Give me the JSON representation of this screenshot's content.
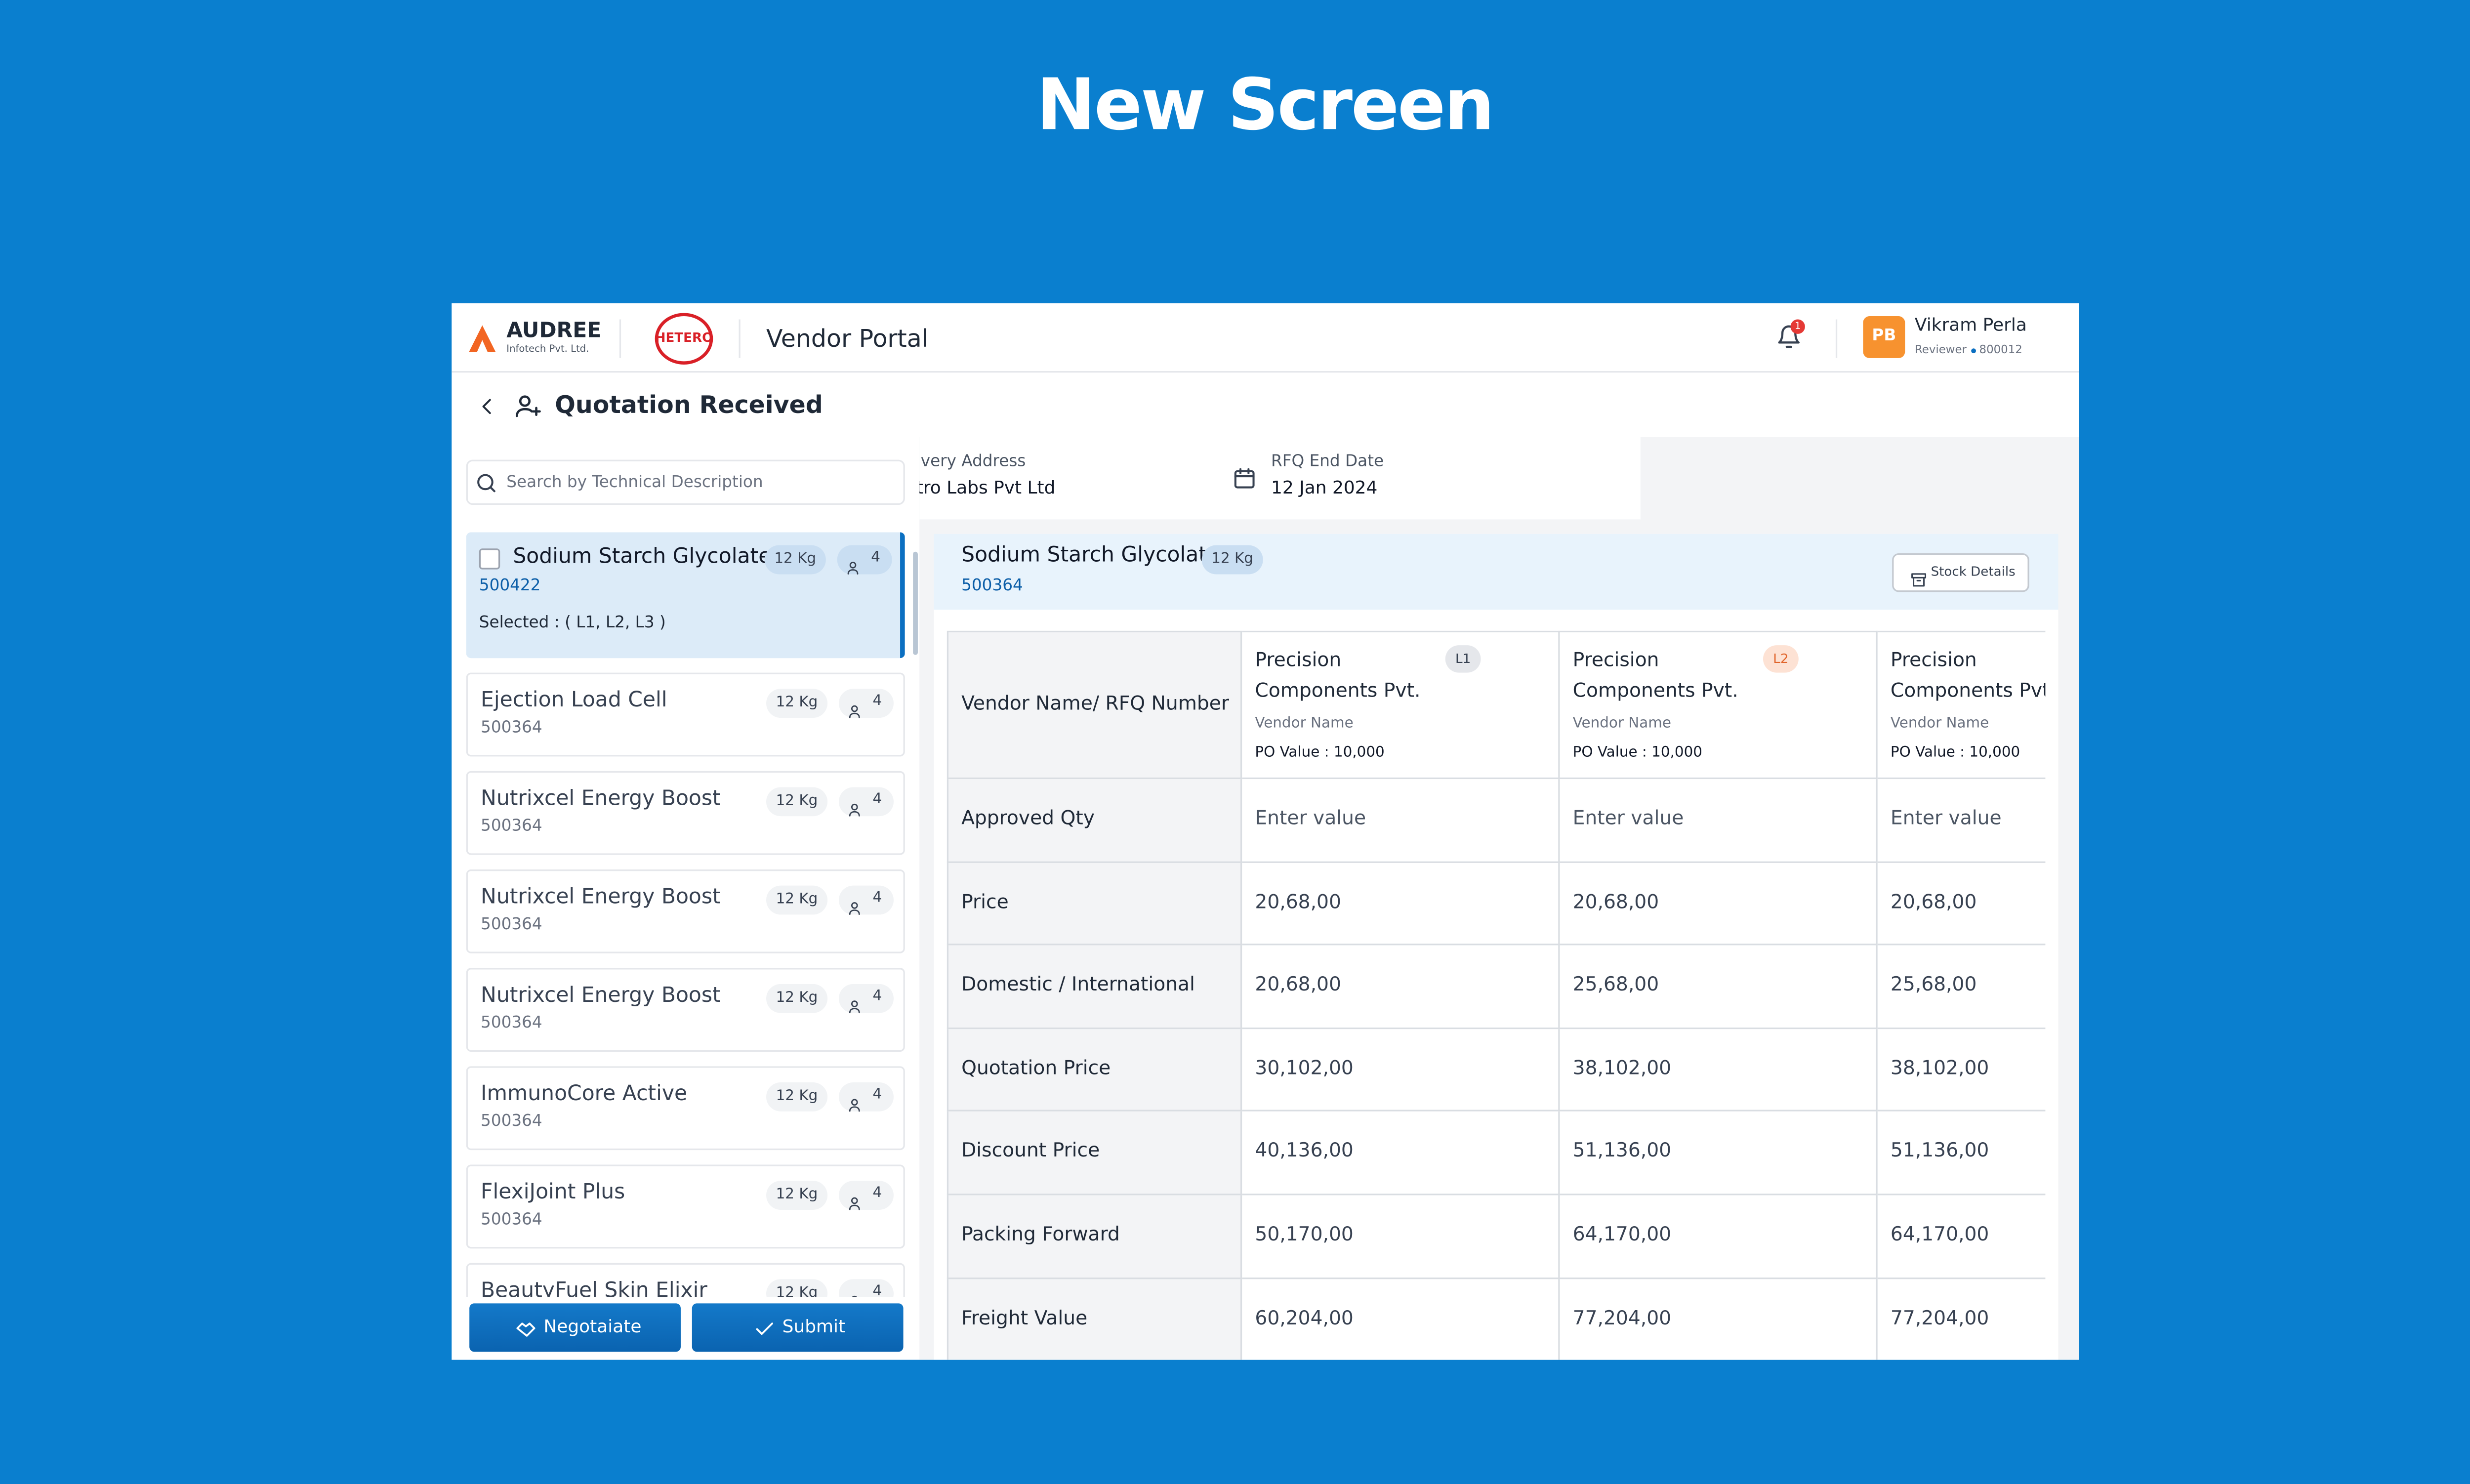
{
  "screen_title": "New Screen",
  "header": {
    "brand": "AUDREE",
    "brand_sub": "Infotech Pvt. Ltd.",
    "partner": "HETERO",
    "portal": "Vendor Portal",
    "notifications": "1",
    "user": {
      "initials": "PB",
      "name": "Vikram Perla",
      "role": "Reviewer",
      "id": "800012"
    }
  },
  "page": {
    "title": "Quotation Received",
    "search_placeholder": "Search by Technical Description"
  },
  "items": [
    {
      "name": "Sodium Starch Glycolate",
      "qty": "12 Kg",
      "count": "4",
      "code": "500422",
      "selected": "Selected : ( L1, L2, L3 )"
    },
    {
      "name": "Ejection Load Cell",
      "qty": "12 Kg",
      "count": "4",
      "code": "500364"
    },
    {
      "name": "Nutrixcel Energy Boost",
      "qty": "12 Kg",
      "count": "4",
      "code": "500364"
    },
    {
      "name": "Nutrixcel Energy Boost",
      "qty": "12 Kg",
      "count": "4",
      "code": "500364"
    },
    {
      "name": "Nutrixcel Energy Boost",
      "qty": "12 Kg",
      "count": "4",
      "code": "500364"
    },
    {
      "name": "ImmunoCore Active",
      "qty": "12 Kg",
      "count": "4",
      "code": "500364"
    },
    {
      "name": "FlexiJoint Plus",
      "qty": "12 Kg",
      "count": "4",
      "code": "500364"
    },
    {
      "name": "BeautyFuel Skin Elixir",
      "qty": "12 Kg",
      "count": "4"
    }
  ],
  "info": [
    {
      "label": "ivery Address",
      "value": "tro Labs Pvt Ltd"
    },
    {
      "label": "RFQ End Date",
      "value": "12 Jan 2024"
    }
  ],
  "product": {
    "name": "Sodium Starch Glycolate",
    "qty": "12 Kg",
    "code": "500364",
    "action": "Stock Details"
  },
  "table": {
    "header": "Vendor Name/ RFQ Number",
    "vendors": [
      {
        "name": "Precision Components Pvt.",
        "sub": "Vendor Name",
        "po": "PO Value : 10,000",
        "rank": "L1"
      },
      {
        "name": "Precision Components Pvt.",
        "sub": "Vendor Name",
        "po": "PO Value : 10,000",
        "rank": "L2"
      },
      {
        "name": "Precision Components Pvt.",
        "sub": "Vendor Name",
        "po": "PO Value : 10,000"
      }
    ],
    "rows": [
      {
        "label": "Approved Qty",
        "values": [
          "Enter value",
          "Enter value",
          "Enter value"
        ]
      },
      {
        "label": "Price",
        "values": [
          "20,68,00",
          "20,68,00",
          "20,68,00"
        ]
      },
      {
        "label": "Domestic / International",
        "values": [
          "20,68,00",
          "25,68,00",
          "25,68,00"
        ]
      },
      {
        "label": "Quotation Price",
        "values": [
          "30,102,00",
          "38,102,00",
          "38,102,00"
        ]
      },
      {
        "label": "Discount Price",
        "values": [
          "40,136,00",
          "51,136,00",
          "51,136,00"
        ]
      },
      {
        "label": "Packing Forward",
        "values": [
          "50,170,00",
          "64,170,00",
          "64,170,00"
        ]
      },
      {
        "label": "Freight Value",
        "values": [
          "60,204,00",
          "77,204,00",
          "77,204,00"
        ]
      }
    ]
  },
  "actions": [
    "Negotaiate",
    "Submit"
  ]
}
